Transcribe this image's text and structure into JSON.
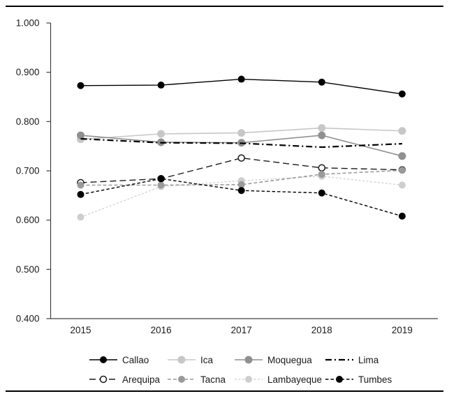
{
  "figure_title": "",
  "axes": {
    "y_tick_labels": [
      "1.000",
      "0.900",
      "0.800",
      "0.700",
      "0.600",
      "0.500",
      "0.400"
    ],
    "x_tick_labels": [
      "2015",
      "2016",
      "2017",
      "2018",
      "2019"
    ],
    "axis_color": "#404040",
    "label_color": "#1a1a1a"
  },
  "chart_data": {
    "type": "line",
    "x": [
      2015,
      2016,
      2017,
      2018,
      2019
    ],
    "title": "",
    "xlabel": "",
    "ylabel": "",
    "ylim": [
      0.4,
      1.0
    ],
    "ytick_step": 0.1,
    "grid": false,
    "legend_position": "bottom",
    "series": [
      {
        "name": "Lambayeque",
        "values": [
          0.606,
          0.668,
          0.68,
          0.689,
          0.671
        ],
        "color": "#cecece",
        "dash": "3 2.5",
        "stroke_width": 1.2,
        "marker": "filled-circle",
        "marker_color": "#cecece",
        "marker_radius": 5
      },
      {
        "name": "Ica",
        "values": [
          0.764,
          0.775,
          0.777,
          0.787,
          0.781
        ],
        "color": "#c7c7c7",
        "dash": "",
        "stroke_width": 1.6,
        "marker": "filled-circle",
        "marker_color": "#c7c7c7",
        "marker_radius": 5.5
      },
      {
        "name": "Moquegua",
        "values": [
          0.772,
          0.758,
          0.757,
          0.772,
          0.73
        ],
        "color": "#909090",
        "dash": "",
        "stroke_width": 1.6,
        "marker": "filled-circle",
        "marker_color": "#909090",
        "marker_radius": 5.5
      },
      {
        "name": "Lima",
        "values": [
          0.765,
          0.757,
          0.756,
          0.748,
          0.755
        ],
        "color": "#000000",
        "dash": "9 4 2 4",
        "stroke_width": 2.2,
        "marker": "none",
        "marker_color": "#000000",
        "marker_radius": 0
      },
      {
        "name": "Arequipa",
        "values": [
          0.676,
          0.684,
          0.726,
          0.706,
          0.702
        ],
        "color": "#1a1a1a",
        "dash": "9 5",
        "stroke_width": 1.4,
        "marker": "open-circle",
        "marker_color": "#ffffff",
        "marker_radius": 4.5
      },
      {
        "name": "Tacna",
        "values": [
          0.671,
          0.671,
          0.672,
          0.693,
          0.701
        ],
        "color": "#9a9a9a",
        "dash": "5 3",
        "stroke_width": 1.6,
        "marker": "filled-circle",
        "marker_color": "#9a9a9a",
        "marker_radius": 5
      },
      {
        "name": "Tumbes",
        "values": [
          0.652,
          0.684,
          0.66,
          0.655,
          0.608
        ],
        "color": "#000000",
        "dash": "4.5 3",
        "stroke_width": 1.4,
        "marker": "filled-circle",
        "marker_color": "#000000",
        "marker_radius": 5
      },
      {
        "name": "Callao",
        "values": [
          0.873,
          0.874,
          0.886,
          0.88,
          0.856
        ],
        "color": "#000000",
        "dash": "",
        "stroke_width": 1.4,
        "marker": "filled-circle",
        "marker_color": "#000000",
        "marker_radius": 5
      }
    ],
    "legend_rows": [
      [
        "Callao",
        "Ica",
        "Moquegua",
        "Lima"
      ],
      [
        "Arequipa",
        "Tacna",
        "Lambayeque",
        "Tumbes"
      ]
    ]
  }
}
